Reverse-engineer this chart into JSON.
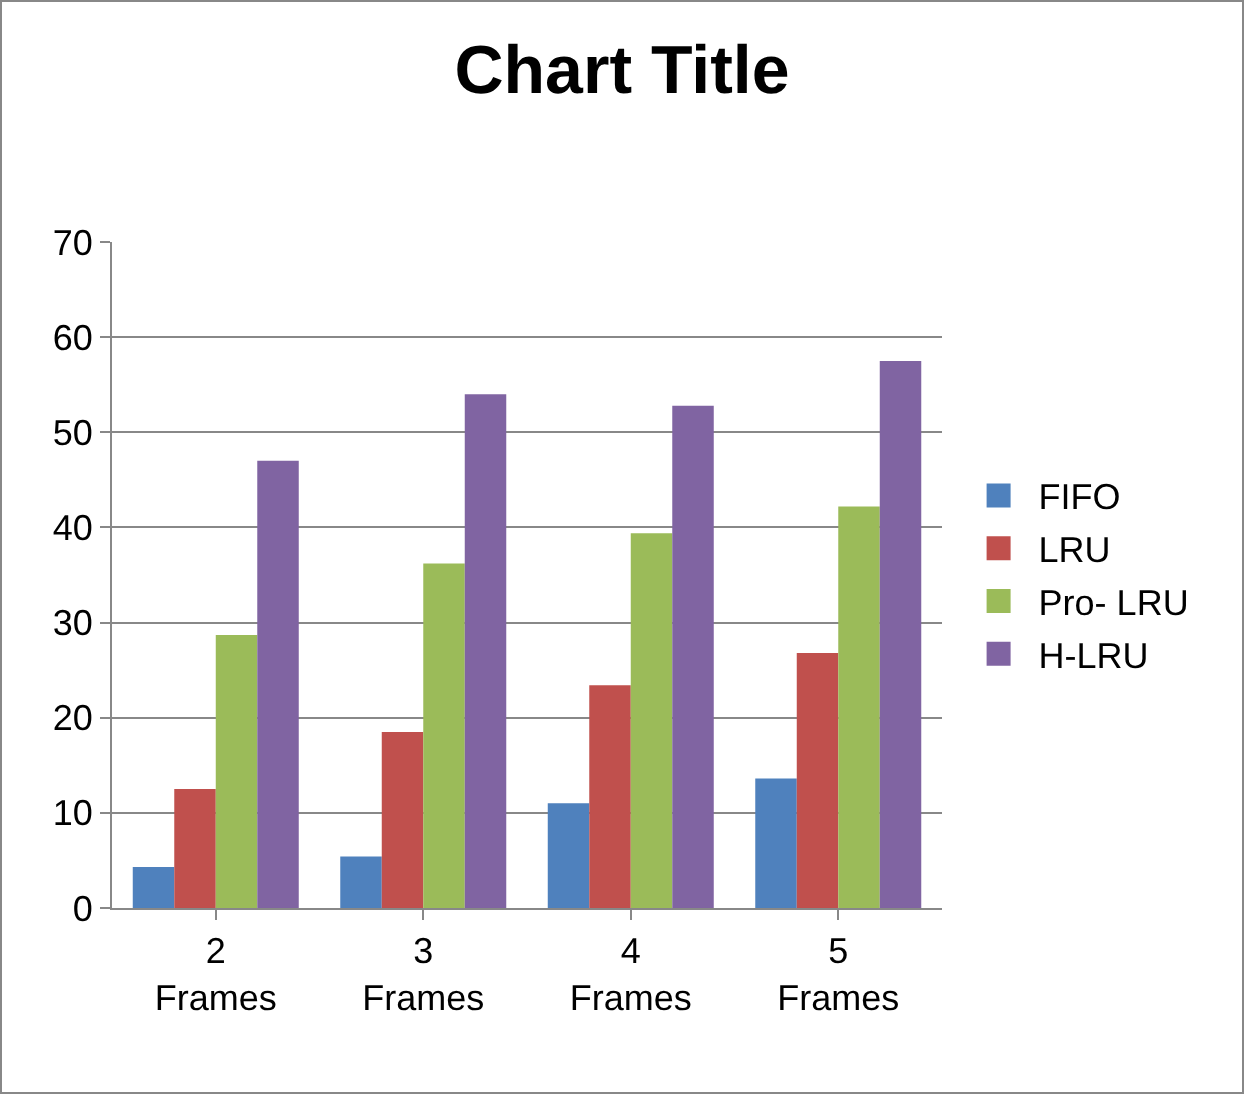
{
  "chart_data": {
    "type": "bar",
    "title": "Chart Title",
    "categories": [
      "2 Frames",
      "3 Frames",
      "4 Frames",
      "5 Frames"
    ],
    "series": [
      {
        "name": "FIFO",
        "color": "#4f81bd",
        "values": [
          4.3,
          5.4,
          11,
          13.6
        ]
      },
      {
        "name": "LRU",
        "color": "#c0504d",
        "values": [
          12.5,
          18.5,
          23.4,
          26.8
        ]
      },
      {
        "name": "Pro- LRU",
        "color": "#9bbb59",
        "values": [
          28.7,
          36.2,
          39.4,
          42.2
        ]
      },
      {
        "name": "H-LRU",
        "color": "#8064a2",
        "values": [
          47,
          54,
          52.8,
          57.5
        ]
      }
    ],
    "ylim": [
      0,
      70
    ],
    "yticks": [
      0,
      10,
      20,
      30,
      40,
      50,
      60,
      70
    ],
    "grid": "y",
    "legend": "right"
  }
}
